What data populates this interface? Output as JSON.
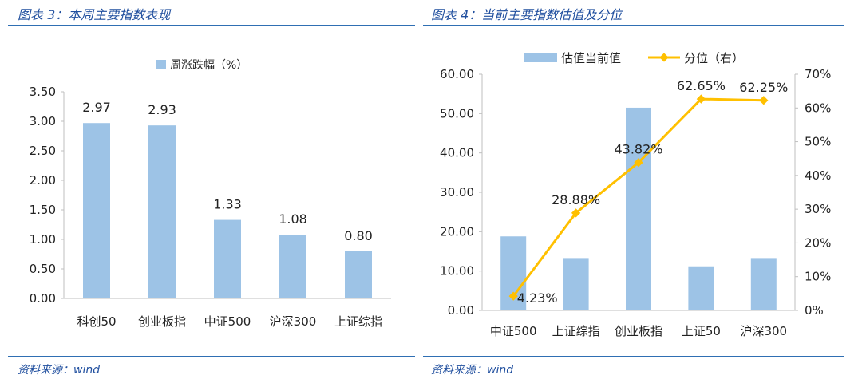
{
  "left_panel": {
    "title": "图表 3：本周主要指数表现",
    "source": "资料来源：wind"
  },
  "right_panel": {
    "title": "图表 4：当前主要指数估值及分位",
    "source": "资料来源：wind"
  },
  "colors": {
    "title": "#1f4e9e",
    "rule": "#2f6fb3",
    "bar": "#9dc3e6",
    "line": "#ffc000"
  },
  "chart_data": [
    {
      "type": "bar",
      "categories": [
        "科创50",
        "创业板指",
        "中证500",
        "沪深300",
        "上证综指"
      ],
      "series": [
        {
          "name": "周涨跌幅（%）",
          "values": [
            2.97,
            2.93,
            1.33,
            1.08,
            0.8
          ]
        }
      ],
      "data_labels": [
        "2.97",
        "2.93",
        "1.33",
        "1.08",
        "0.80"
      ],
      "ylim": [
        0,
        3.5
      ],
      "yticks": [
        "0.00",
        "0.50",
        "1.00",
        "1.50",
        "2.00",
        "2.50",
        "3.00",
        "3.50"
      ],
      "legend_position": "top",
      "grid": false
    },
    {
      "type": "bar",
      "categories": [
        "中证500",
        "上证综指",
        "创业板指",
        "上证50",
        "沪深300"
      ],
      "series": [
        {
          "name": "估值当前值",
          "type": "bar",
          "axis": "left",
          "values": [
            18.8,
            13.3,
            51.5,
            11.2,
            13.3
          ]
        },
        {
          "name": "分位（右）",
          "type": "line",
          "axis": "right",
          "values": [
            4.23,
            28.88,
            43.82,
            62.65,
            62.25
          ],
          "labels": [
            "4.23%",
            "28.88%",
            "43.82%",
            "62.65%",
            "62.25%"
          ]
        }
      ],
      "ylim": [
        0,
        60
      ],
      "yticks": [
        "0.00",
        "10.00",
        "20.00",
        "30.00",
        "40.00",
        "50.00",
        "60.00"
      ],
      "y2lim": [
        0,
        70
      ],
      "y2ticks": [
        "0%",
        "10%",
        "20%",
        "30%",
        "40%",
        "50%",
        "60%",
        "70%"
      ],
      "legend_position": "top",
      "grid": false
    }
  ]
}
